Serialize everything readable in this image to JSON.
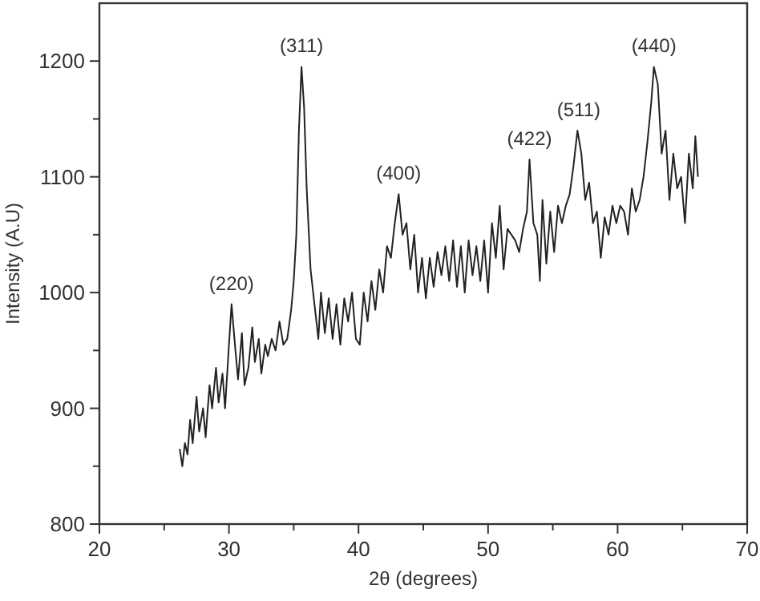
{
  "chart_data": {
    "type": "line",
    "xlabel": "2θ (degrees)",
    "ylabel": "Intensity (A.U)",
    "xlim": [
      20,
      70
    ],
    "ylim": [
      800,
      1250
    ],
    "xticks": [
      20,
      {
        "value": 25,
        "label": null
      },
      30,
      {
        "value": 35,
        "label": null
      },
      40,
      {
        "value": 45,
        "label": null
      },
      50,
      {
        "value": 55,
        "label": null
      },
      60,
      {
        "value": 65,
        "label": null
      },
      70
    ],
    "yticks": [
      800,
      {
        "value": 850,
        "label": null
      },
      900,
      {
        "value": 950,
        "label": null
      },
      1000,
      {
        "value": 1050,
        "label": null
      },
      1100,
      {
        "value": 1150,
        "label": null
      },
      1200
    ],
    "grid": false,
    "marker": "none",
    "line_style": "solid",
    "series": [
      {
        "color": "#222222",
        "x": [
          26.2,
          26.4,
          26.6,
          26.8,
          27.0,
          27.2,
          27.5,
          27.7,
          28.0,
          28.2,
          28.5,
          28.7,
          29.0,
          29.2,
          29.5,
          29.7,
          30.0,
          30.2,
          30.5,
          30.7,
          31.0,
          31.2,
          31.5,
          31.8,
          32.0,
          32.3,
          32.5,
          32.8,
          33.0,
          33.3,
          33.6,
          33.9,
          34.2,
          34.5,
          34.8,
          35.0,
          35.2,
          35.4,
          35.6,
          35.8,
          36.0,
          36.3,
          36.6,
          36.9,
          37.1,
          37.4,
          37.7,
          38.0,
          38.3,
          38.6,
          38.9,
          39.2,
          39.5,
          39.8,
          40.1,
          40.4,
          40.7,
          41.0,
          41.3,
          41.6,
          41.9,
          42.2,
          42.5,
          42.8,
          43.1,
          43.4,
          43.7,
          44.0,
          44.3,
          44.6,
          44.9,
          45.2,
          45.5,
          45.8,
          46.1,
          46.4,
          46.7,
          47.0,
          47.3,
          47.6,
          47.9,
          48.2,
          48.5,
          48.8,
          49.1,
          49.4,
          49.7,
          50.0,
          50.3,
          50.6,
          50.9,
          51.2,
          51.5,
          51.8,
          52.1,
          52.4,
          52.7,
          53.0,
          53.2,
          53.5,
          53.8,
          54.0,
          54.2,
          54.5,
          54.8,
          55.1,
          55.4,
          55.7,
          56.0,
          56.3,
          56.6,
          56.9,
          57.2,
          57.5,
          57.8,
          58.1,
          58.4,
          58.7,
          59.0,
          59.3,
          59.6,
          59.9,
          60.2,
          60.5,
          60.8,
          61.1,
          61.4,
          61.7,
          62.0,
          62.3,
          62.6,
          62.8,
          63.1,
          63.4,
          63.7,
          64.0,
          64.3,
          64.6,
          64.9,
          65.2,
          65.5,
          65.8,
          66.0,
          66.2
        ],
        "values": [
          865,
          850,
          870,
          860,
          890,
          870,
          910,
          880,
          900,
          875,
          920,
          900,
          935,
          905,
          930,
          900,
          955,
          990,
          950,
          925,
          965,
          920,
          935,
          970,
          940,
          960,
          930,
          955,
          945,
          960,
          950,
          975,
          955,
          960,
          985,
          1010,
          1050,
          1140,
          1195,
          1160,
          1090,
          1020,
          990,
          960,
          1000,
          965,
          995,
          960,
          990,
          955,
          995,
          975,
          1000,
          960,
          955,
          1000,
          975,
          1010,
          985,
          1020,
          1000,
          1040,
          1030,
          1060,
          1085,
          1050,
          1060,
          1020,
          1050,
          1000,
          1030,
          995,
          1030,
          1005,
          1035,
          1015,
          1040,
          1010,
          1045,
          1005,
          1040,
          1000,
          1045,
          1015,
          1040,
          1010,
          1045,
          1000,
          1060,
          1030,
          1075,
          1020,
          1055,
          1050,
          1045,
          1035,
          1055,
          1070,
          1115,
          1060,
          1050,
          1010,
          1080,
          1025,
          1070,
          1035,
          1075,
          1060,
          1075,
          1085,
          1110,
          1140,
          1120,
          1080,
          1095,
          1060,
          1070,
          1030,
          1065,
          1050,
          1075,
          1060,
          1075,
          1070,
          1050,
          1090,
          1070,
          1080,
          1100,
          1130,
          1165,
          1195,
          1180,
          1120,
          1140,
          1080,
          1120,
          1090,
          1100,
          1060,
          1120,
          1090,
          1135,
          1100
        ]
      }
    ],
    "annotations": [
      {
        "text": "(220)",
        "x": 30.2,
        "y": 990
      },
      {
        "text": "(311)",
        "x": 35.6,
        "y": 1195
      },
      {
        "text": "(400)",
        "x": 43.1,
        "y": 1085
      },
      {
        "text": "(422)",
        "x": 53.2,
        "y": 1115
      },
      {
        "text": "(511)",
        "x": 57.0,
        "y": 1140
      },
      {
        "text": "(440)",
        "x": 62.8,
        "y": 1195
      }
    ]
  }
}
